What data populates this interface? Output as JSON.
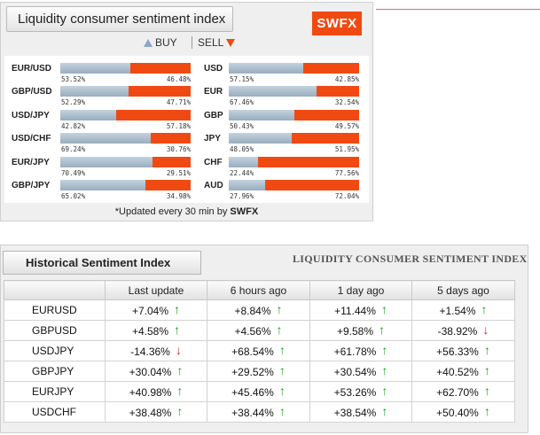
{
  "panel1": {
    "title": "Liquidity consumer sentiment index",
    "logo": "SWFX",
    "legend": {
      "buy": "BUY",
      "sell": "SELL"
    },
    "colors": {
      "buy": "#8ba7c6",
      "sell": "#f04a12"
    },
    "left_rows": [
      {
        "label": "EUR/USD",
        "buy": "53.52%",
        "sell": "46.48%",
        "buy_fraction": 0.5352
      },
      {
        "label": "GBP/USD",
        "buy": "52.29%",
        "sell": "47.71%",
        "buy_fraction": 0.5229
      },
      {
        "label": "USD/JPY",
        "buy": "42.82%",
        "sell": "57.18%",
        "buy_fraction": 0.4282
      },
      {
        "label": "USD/CHF",
        "buy": "69.24%",
        "sell": "30.76%",
        "buy_fraction": 0.6924
      },
      {
        "label": "EUR/JPY",
        "buy": "70.49%",
        "sell": "29.51%",
        "buy_fraction": 0.7049
      },
      {
        "label": "GBP/JPY",
        "buy": "65.02%",
        "sell": "34.98%",
        "buy_fraction": 0.6502
      }
    ],
    "right_rows": [
      {
        "label": "USD",
        "buy": "57.15%",
        "sell": "42.85%",
        "buy_fraction": 0.5715
      },
      {
        "label": "EUR",
        "buy": "67.46%",
        "sell": "32.54%",
        "buy_fraction": 0.6746
      },
      {
        "label": "GBP",
        "buy": "50.43%",
        "sell": "49.57%",
        "buy_fraction": 0.5043
      },
      {
        "label": "JPY",
        "buy": "48.05%",
        "sell": "51.95%",
        "buy_fraction": 0.4805
      },
      {
        "label": "CHF",
        "buy": "22.44%",
        "sell": "77.56%",
        "buy_fraction": 0.2244
      },
      {
        "label": "AUD",
        "buy": "27.96%",
        "sell": "72.04%",
        "buy_fraction": 0.2796
      }
    ],
    "footer": {
      "prefix": "*Updated every 30 min by",
      "brand": "SWFX"
    }
  },
  "panel2": {
    "tab_title": "Historical  Sentiment Index",
    "right_title": "LIQUIDITY CONSUMER SENTIMENT INDEX",
    "headers": [
      "",
      "Last update",
      "6 hours ago",
      "1 day ago",
      "5 days ago"
    ],
    "rows": [
      {
        "pair": "EURUSD",
        "cells": [
          {
            "v": "+7.04%",
            "d": "up"
          },
          {
            "v": "+8.84%",
            "d": "up"
          },
          {
            "v": "+11.44%",
            "d": "up"
          },
          {
            "v": "+1.54%",
            "d": "up"
          }
        ]
      },
      {
        "pair": "GBPUSD",
        "cells": [
          {
            "v": "+4.58%",
            "d": "up"
          },
          {
            "v": "+4.56%",
            "d": "up"
          },
          {
            "v": "+9.58%",
            "d": "up"
          },
          {
            "v": "-38.92%",
            "d": "down"
          }
        ]
      },
      {
        "pair": "USDJPY",
        "cells": [
          {
            "v": "-14.36%",
            "d": "down"
          },
          {
            "v": "+68.54%",
            "d": "up"
          },
          {
            "v": "+61.78%",
            "d": "up"
          },
          {
            "v": "+56.33%",
            "d": "up"
          }
        ]
      },
      {
        "pair": "GBPJPY",
        "cells": [
          {
            "v": "+30.04%",
            "d": "up"
          },
          {
            "v": "+29.52%",
            "d": "up"
          },
          {
            "v": "+30.54%",
            "d": "up"
          },
          {
            "v": "+40.52%",
            "d": "up"
          }
        ]
      },
      {
        "pair": "EURJPY",
        "cells": [
          {
            "v": "+40.98%",
            "d": "up"
          },
          {
            "v": "+45.46%",
            "d": "up"
          },
          {
            "v": "+53.26%",
            "d": "up"
          },
          {
            "v": "+62.70%",
            "d": "up"
          }
        ]
      },
      {
        "pair": "USDCHF",
        "cells": [
          {
            "v": "+38.48%",
            "d": "up"
          },
          {
            "v": "+38.44%",
            "d": "up"
          },
          {
            "v": "+38.54%",
            "d": "up"
          },
          {
            "v": "+50.40%",
            "d": "up"
          }
        ]
      }
    ]
  }
}
